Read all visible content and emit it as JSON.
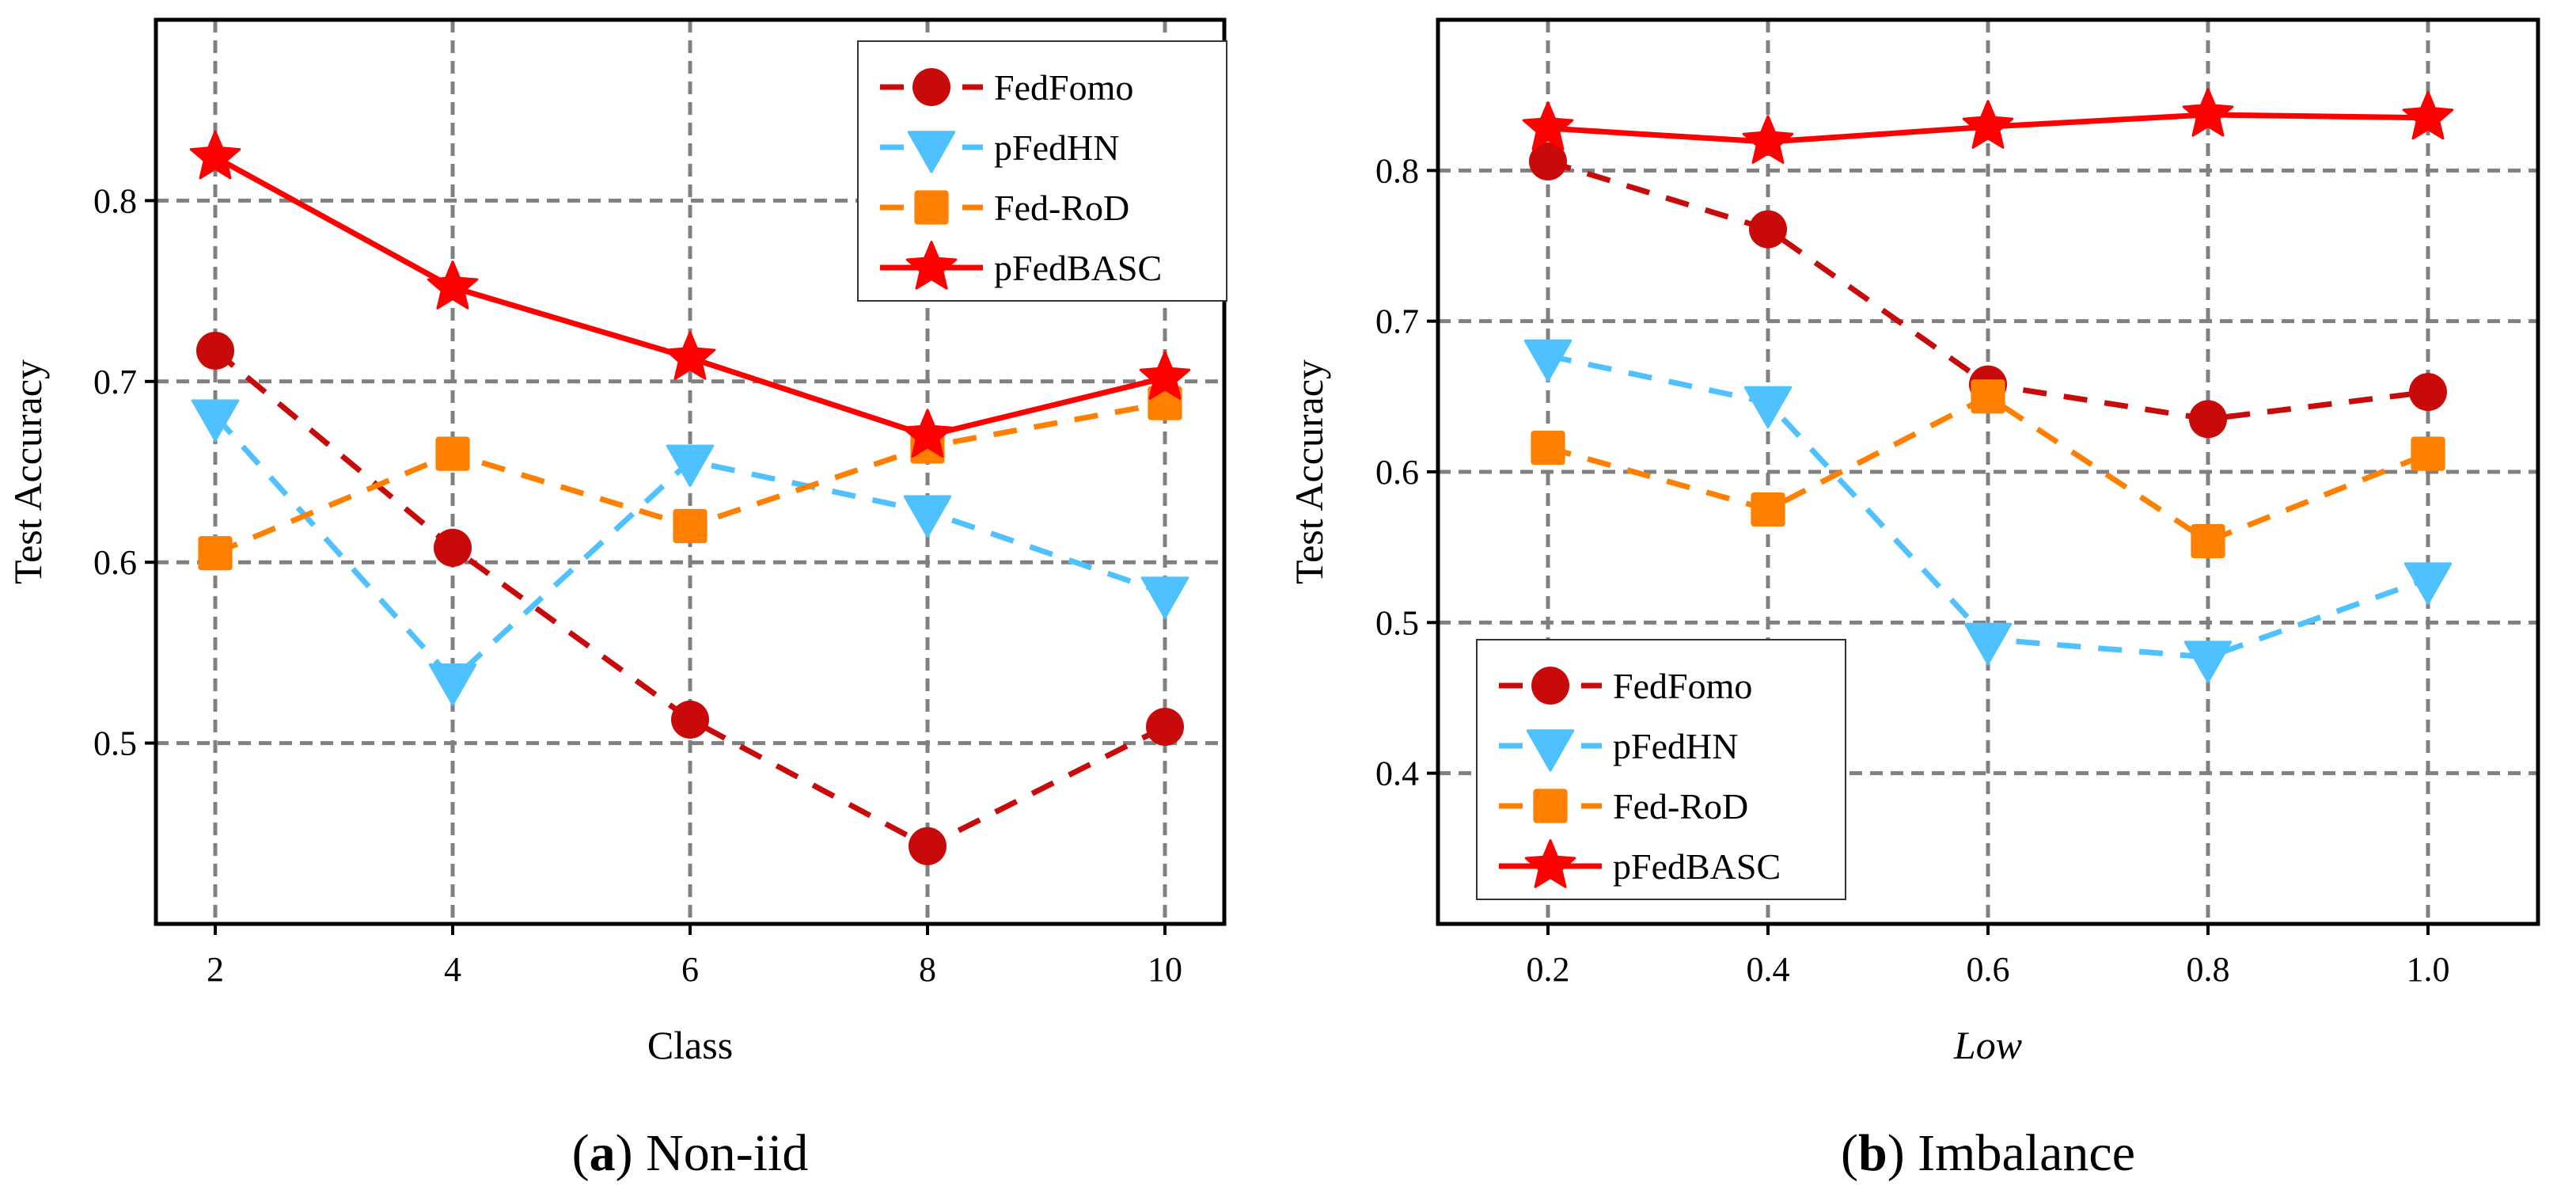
{
  "chart_data": [
    {
      "type": "line",
      "id": "a",
      "caption_label": "a",
      "caption_text": "Non-iid",
      "xlabel": "Class",
      "xlabel_italic": false,
      "ylabel": "Test Accuracy",
      "x": [
        2,
        4,
        6,
        8,
        10
      ],
      "xticks": [
        "2",
        "4",
        "6",
        "8",
        "10"
      ],
      "xlim": [
        1.5,
        10.5
      ],
      "yticks": [
        0.5,
        0.6,
        0.7,
        0.8
      ],
      "ytick_labels": [
        "0.5",
        "0.6",
        "0.7",
        "0.8"
      ],
      "ylim": [
        0.4,
        0.9
      ],
      "grid": true,
      "legend_position": "top-right",
      "series": [
        {
          "name": "FedFomo",
          "color": "#C80A0A",
          "marker": "circle",
          "dash": true,
          "values": [
            0.717,
            0.608,
            0.513,
            0.443,
            0.509
          ]
        },
        {
          "name": "pFedHN",
          "color": "#4FC1FF",
          "marker": "triangle-down",
          "dash": true,
          "values": [
            0.681,
            0.535,
            0.656,
            0.628,
            0.583
          ]
        },
        {
          "name": "Fed-RoD",
          "color": "#FF8000",
          "marker": "square",
          "dash": true,
          "values": [
            0.605,
            0.66,
            0.62,
            0.664,
            0.688
          ]
        },
        {
          "name": "pFedBASC",
          "color": "#FF0000",
          "marker": "star",
          "dash": false,
          "values": [
            0.824,
            0.752,
            0.713,
            0.67,
            0.702
          ]
        }
      ]
    },
    {
      "type": "line",
      "id": "b",
      "caption_label": "b",
      "caption_text": "Imbalance",
      "xlabel": "Low",
      "xlabel_italic": true,
      "ylabel": "Test Accuracy",
      "x": [
        0.2,
        0.4,
        0.6,
        0.8,
        1.0
      ],
      "xticks": [
        "0.2",
        "0.4",
        "0.6",
        "0.8",
        "1.0"
      ],
      "xlim": [
        0.1,
        1.1
      ],
      "yticks": [
        0.4,
        0.5,
        0.6,
        0.7,
        0.8
      ],
      "ytick_labels": [
        "0.4",
        "0.5",
        "0.6",
        "0.7",
        "0.8"
      ],
      "ylim": [
        0.3,
        0.9
      ],
      "grid": true,
      "legend_position": "bottom-left",
      "series": [
        {
          "name": "FedFomo",
          "color": "#C80A0A",
          "marker": "circle",
          "dash": true,
          "values": [
            0.806,
            0.761,
            0.658,
            0.635,
            0.653
          ]
        },
        {
          "name": "pFedHN",
          "color": "#4FC1FF",
          "marker": "triangle-down",
          "dash": true,
          "values": [
            0.677,
            0.646,
            0.489,
            0.477,
            0.529
          ]
        },
        {
          "name": "Fed-RoD",
          "color": "#FF8000",
          "marker": "square",
          "dash": true,
          "values": [
            0.616,
            0.575,
            0.65,
            0.554,
            0.612
          ]
        },
        {
          "name": "pFedBASC",
          "color": "#FF0000",
          "marker": "star",
          "dash": false,
          "values": [
            0.828,
            0.819,
            0.829,
            0.837,
            0.835
          ]
        }
      ]
    }
  ]
}
